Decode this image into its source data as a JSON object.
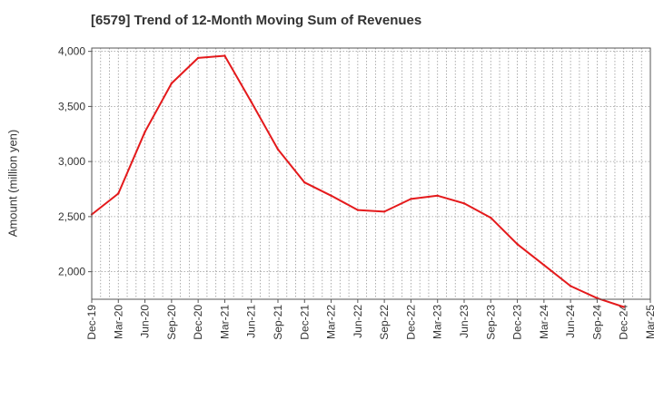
{
  "chart_data": {
    "type": "line",
    "title": "[6579]  Trend of 12-Month Moving Sum of Revenues",
    "xlabel": "",
    "ylabel": "Amount (million yen)",
    "ylim": [
      1750,
      4030
    ],
    "y_ticks": [
      2000,
      2500,
      3000,
      3500,
      4000
    ],
    "y_tick_labels": [
      "2,000",
      "2,500",
      "3,000",
      "3,500",
      "4,000"
    ],
    "x_tick_labels": [
      "Dec-19",
      "Mar-20",
      "Jun-20",
      "Sep-20",
      "Dec-20",
      "Mar-21",
      "Jun-21",
      "Sep-21",
      "Dec-21",
      "Mar-22",
      "Jun-22",
      "Sep-22",
      "Dec-22",
      "Mar-23",
      "Jun-23",
      "Sep-23",
      "Dec-23",
      "Mar-24",
      "Jun-24",
      "Sep-24",
      "Dec-24",
      "Mar-25"
    ],
    "grid": true,
    "line_color": "#e41a1c",
    "series": [
      {
        "x": [
          "Dec-19",
          "Mar-20",
          "Jun-20",
          "Sep-20",
          "Dec-20",
          "Mar-21",
          "Jun-21",
          "Sep-21",
          "Dec-21",
          "Mar-22",
          "Jun-22",
          "Sep-22",
          "Dec-22",
          "Mar-23",
          "Jun-23",
          "Sep-23",
          "Dec-23",
          "Mar-24",
          "Jun-24",
          "Sep-24",
          "Dec-24"
        ],
        "values": [
          2520,
          2710,
          3270,
          3710,
          3940,
          3960,
          3540,
          3110,
          2810,
          2690,
          2560,
          2545,
          2660,
          2690,
          2620,
          2490,
          2250,
          2060,
          1870,
          1760,
          1680
        ]
      }
    ]
  }
}
